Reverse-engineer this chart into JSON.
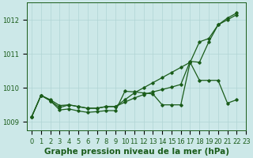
{
  "title": "Graphe pression niveau de la mer (hPa)",
  "background_color": "#cce8e8",
  "grid_color": "#b0d4d4",
  "line_color": "#1a5c1a",
  "ylim": [
    1008.75,
    1012.5
  ],
  "yticks": [
    1009,
    1010,
    1011,
    1012
  ],
  "xticks": [
    0,
    1,
    2,
    3,
    4,
    5,
    6,
    7,
    8,
    9,
    10,
    11,
    12,
    13,
    14,
    15,
    16,
    17,
    18,
    19,
    20,
    21,
    22,
    23
  ],
  "title_fontsize": 7.5,
  "tick_fontsize": 6.0,
  "line1_x": [
    0,
    1,
    2,
    3,
    4,
    5,
    6,
    7,
    8,
    9,
    10,
    11,
    12,
    13,
    14,
    15,
    16,
    17,
    18,
    19,
    20,
    21,
    22
  ],
  "line1_y": [
    1009.15,
    1009.78,
    1009.65,
    1009.48,
    1009.5,
    1009.45,
    1009.4,
    1009.4,
    1009.45,
    1009.45,
    1009.65,
    1009.85,
    1010.0,
    1010.15,
    1010.3,
    1010.45,
    1010.6,
    1010.75,
    1011.35,
    1011.45,
    1011.85,
    1012.0,
    1012.15
  ],
  "line2_x": [
    0,
    1,
    2,
    3,
    4,
    5,
    6,
    7,
    8,
    9,
    10,
    11,
    12,
    13,
    14,
    15,
    16,
    17,
    18,
    19,
    20,
    21,
    22
  ],
  "line2_y": [
    1009.15,
    1009.78,
    1009.62,
    1009.42,
    1009.5,
    1009.45,
    1009.4,
    1009.4,
    1009.45,
    1009.45,
    1009.58,
    1009.7,
    1009.8,
    1009.88,
    1009.95,
    1010.02,
    1010.1,
    1010.78,
    1010.75,
    1011.35,
    1011.85,
    1012.05,
    1012.2
  ],
  "line3_x": [
    0,
    1,
    2,
    3,
    4,
    5,
    6,
    7,
    8,
    9,
    10,
    11,
    12,
    13,
    14,
    15,
    16,
    17,
    18,
    19,
    20,
    21,
    22
  ],
  "line3_y": [
    1009.15,
    1009.78,
    1009.62,
    1009.35,
    1009.38,
    1009.32,
    1009.28,
    1009.3,
    1009.33,
    1009.33,
    1009.9,
    1009.88,
    1009.85,
    1009.82,
    1009.5,
    1009.5,
    1009.5,
    1010.75,
    1010.22,
    1010.22,
    1010.22,
    1009.55,
    1009.65
  ]
}
